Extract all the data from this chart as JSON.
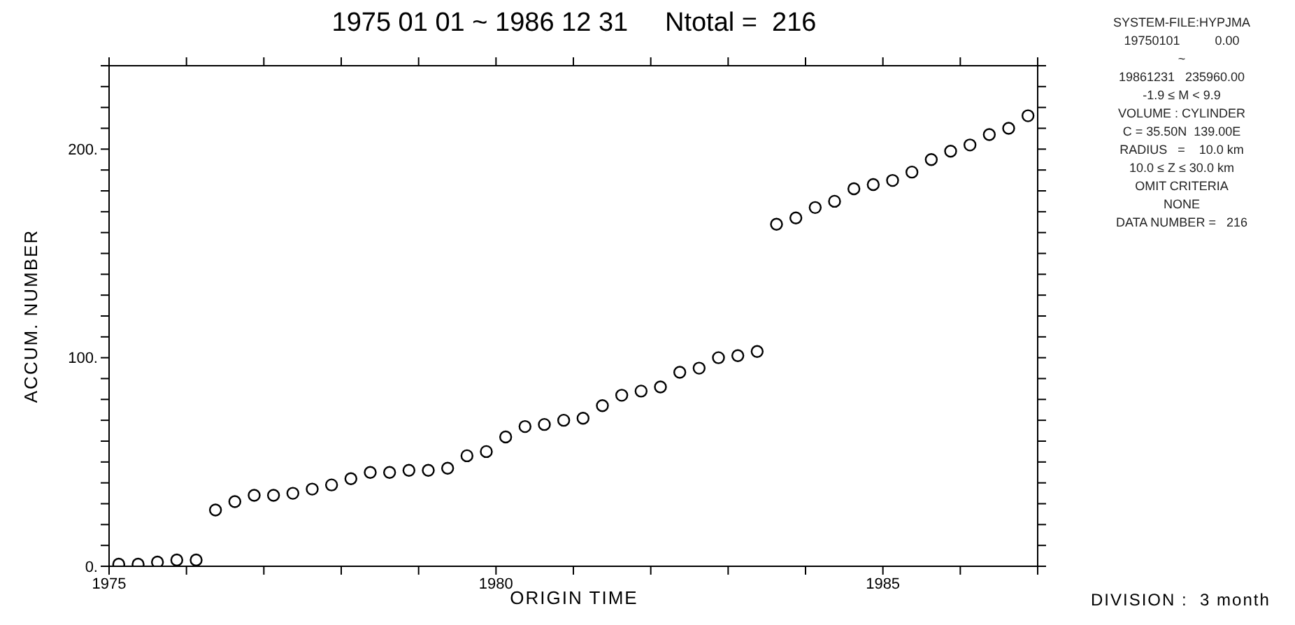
{
  "chart_data": {
    "type": "scatter",
    "title": "1975 01 01 ~ 1986 12 31     Ntotal =  216",
    "xlabel": "ORIGIN TIME",
    "ylabel": "ACCUM. NUMBER",
    "x": [
      1975.125,
      1975.375,
      1975.625,
      1975.875,
      1976.125,
      1976.375,
      1976.625,
      1976.875,
      1977.125,
      1977.375,
      1977.625,
      1977.875,
      1978.125,
      1978.375,
      1978.625,
      1978.875,
      1979.125,
      1979.375,
      1979.625,
      1979.875,
      1980.125,
      1980.375,
      1980.625,
      1980.875,
      1981.125,
      1981.375,
      1981.625,
      1981.875,
      1982.125,
      1982.375,
      1982.625,
      1982.875,
      1983.125,
      1983.375,
      1983.625,
      1983.875,
      1984.125,
      1984.375,
      1984.625,
      1984.875,
      1985.125,
      1985.375,
      1985.625,
      1985.875,
      1986.125,
      1986.375,
      1986.625,
      1986.875
    ],
    "values": [
      1,
      1,
      2,
      3,
      3,
      27,
      31,
      34,
      34,
      35,
      37,
      39,
      42,
      45,
      45,
      46,
      46,
      47,
      53,
      55,
      62,
      67,
      68,
      70,
      71,
      77,
      82,
      84,
      86,
      93,
      95,
      100,
      101,
      103,
      164,
      167,
      172,
      175,
      181,
      183,
      185,
      189,
      195,
      199,
      202,
      207,
      210,
      216
    ],
    "color": "#000000",
    "marker": "circle",
    "xlim": [
      1975,
      1987
    ],
    "xticks": [
      1975,
      {
        "value": 1976,
        "label": null
      },
      {
        "value": 1977,
        "label": null
      },
      {
        "value": 1978,
        "label": null
      },
      {
        "value": 1979,
        "label": null
      },
      1980,
      {
        "value": 1981,
        "label": null
      },
      {
        "value": 1982,
        "label": null
      },
      {
        "value": 1983,
        "label": null
      },
      {
        "value": 1984,
        "label": null
      },
      1985,
      {
        "value": 1986,
        "label": null
      },
      {
        "value": 1987,
        "label": null
      }
    ],
    "ylim": [
      0,
      240
    ],
    "yticks": [
      {
        "value": 0,
        "label": "0."
      },
      {
        "value": 10,
        "label": null
      },
      {
        "value": 20,
        "label": null
      },
      {
        "value": 30,
        "label": null
      },
      {
        "value": 40,
        "label": null
      },
      {
        "value": 50,
        "label": null
      },
      {
        "value": 60,
        "label": null
      },
      {
        "value": 70,
        "label": null
      },
      {
        "value": 80,
        "label": null
      },
      {
        "value": 90,
        "label": null
      },
      {
        "value": 100,
        "label": "100."
      },
      {
        "value": 110,
        "label": null
      },
      {
        "value": 120,
        "label": null
      },
      {
        "value": 130,
        "label": null
      },
      {
        "value": 140,
        "label": null
      },
      {
        "value": 150,
        "label": null
      },
      {
        "value": 160,
        "label": null
      },
      {
        "value": 170,
        "label": null
      },
      {
        "value": 180,
        "label": null
      },
      {
        "value": 190,
        "label": null
      },
      {
        "value": 200,
        "label": "200."
      },
      {
        "value": 210,
        "label": null
      },
      {
        "value": 220,
        "label": null
      },
      {
        "value": 230,
        "label": null
      },
      {
        "value": 240,
        "label": null
      }
    ],
    "annotations": [
      "SYSTEM-FILE:HYPJMA",
      "19750101          0.00",
      "~",
      "19861231   235960.00",
      "-1.9 ≤ M < 9.9",
      "VOLUME : CYLINDER",
      "C = 35.50N  139.00E",
      "RADIUS   =    10.0 km",
      "10.0 ≤ Z ≤ 30.0 km",
      "OMIT CRITERIA",
      "NONE",
      "DATA NUMBER =   216",
      "DIVISION :  3 month"
    ]
  }
}
